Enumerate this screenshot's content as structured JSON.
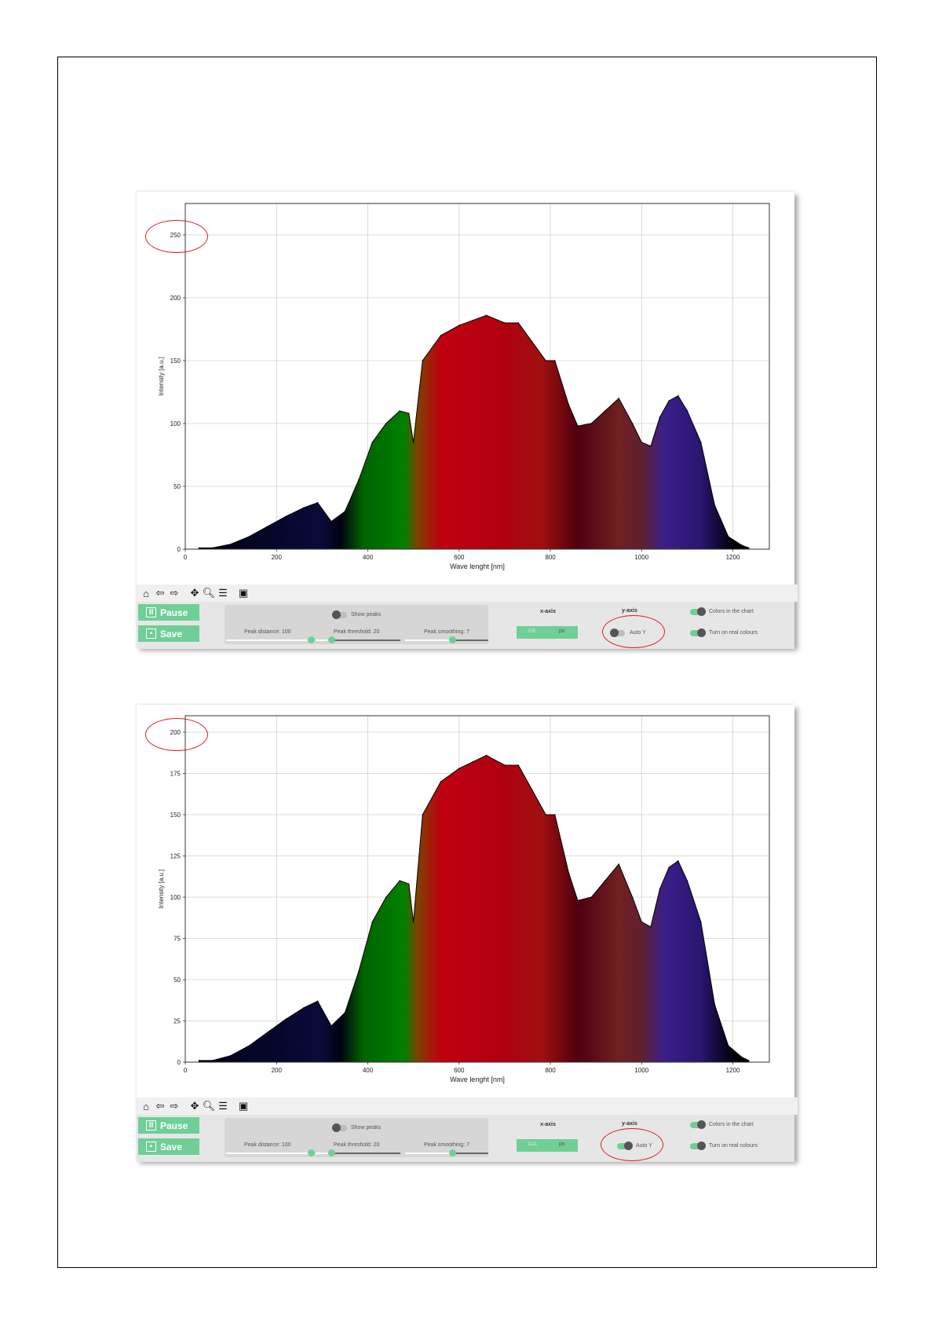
{
  "chart_data": [
    {
      "type": "area",
      "title": "",
      "xlabel": "Wave lenght [nm]",
      "ylabel": "Intensity [a.u.]",
      "xlim": [
        0,
        1280
      ],
      "ylim": [
        0,
        275
      ],
      "xticks": [
        "0",
        "200",
        "400",
        "600",
        "800",
        "1000",
        "1200"
      ],
      "yticks": [
        "0",
        "50",
        "100",
        "150",
        "200",
        "250"
      ],
      "grid": true,
      "x": [
        30,
        60,
        100,
        140,
        180,
        220,
        260,
        290,
        320,
        350,
        380,
        410,
        440,
        470,
        490,
        500,
        520,
        560,
        600,
        630,
        660,
        700,
        730,
        760,
        790,
        810,
        840,
        860,
        890,
        920,
        950,
        980,
        1000,
        1020,
        1040,
        1060,
        1080,
        1100,
        1130,
        1160,
        1190,
        1220,
        1235
      ],
      "y": [
        1,
        1,
        4,
        10,
        18,
        26,
        33,
        37,
        22,
        30,
        55,
        85,
        100,
        110,
        108,
        85,
        150,
        170,
        178,
        182,
        186,
        180,
        180,
        165,
        150,
        150,
        115,
        98,
        100,
        110,
        120,
        100,
        85,
        82,
        105,
        118,
        122,
        110,
        85,
        35,
        10,
        3,
        1
      ]
    },
    {
      "type": "area",
      "title": "",
      "xlabel": "Wave lenght [nm]",
      "ylabel": "Intensity [a.u.]",
      "xlim": [
        0,
        1280
      ],
      "ylim": [
        0,
        210
      ],
      "xticks": [
        "0",
        "200",
        "400",
        "600",
        "800",
        "1000",
        "1200"
      ],
      "yticks": [
        "0",
        "25",
        "50",
        "75",
        "100",
        "125",
        "150",
        "175",
        "200"
      ],
      "grid": true,
      "x": [
        30,
        60,
        100,
        140,
        180,
        220,
        260,
        290,
        320,
        350,
        380,
        410,
        440,
        470,
        490,
        500,
        520,
        560,
        600,
        630,
        660,
        700,
        730,
        760,
        790,
        810,
        840,
        860,
        890,
        920,
        950,
        980,
        1000,
        1020,
        1040,
        1060,
        1080,
        1100,
        1130,
        1160,
        1190,
        1220,
        1235
      ],
      "y": [
        1,
        1,
        4,
        10,
        18,
        26,
        33,
        37,
        22,
        30,
        55,
        85,
        100,
        110,
        108,
        85,
        150,
        170,
        178,
        182,
        186,
        180,
        180,
        165,
        150,
        150,
        115,
        98,
        100,
        110,
        120,
        100,
        85,
        82,
        105,
        118,
        122,
        110,
        85,
        35,
        10,
        3,
        1
      ]
    }
  ],
  "controls": {
    "pause_label": "Pause",
    "save_label": "Save",
    "show_peaks_label": "Show peaks",
    "peak_distance_label": "Peak distance: 100",
    "peak_threshold_label": "Peak threshold: 20",
    "peak_smoothing_label": "Peak smoothing: 7",
    "x_axis_label": "x-axis",
    "y_axis_label": "y-axis",
    "x_value_1": "205",
    "x_value_2": "1111",
    "px_unit": "px",
    "auto_y_label": "Auto Y",
    "colors_in_chart_label": "Colors in the chart",
    "real_colours_label": "Turn on real colours",
    "peak_distance_value": 100,
    "peak_threshold_value": 20,
    "peak_smoothing_value": 7,
    "auto_y_top": false,
    "auto_y_bottom": true,
    "accent_color": "#6fcf97",
    "highlight_color": "#e02020"
  },
  "toolbar_icons": [
    "home-icon",
    "back-arrow-icon",
    "forward-arrow-icon",
    "pan-move-icon",
    "zoom-magnifier-icon",
    "configure-sliders-icon",
    "save-floppy-icon"
  ]
}
